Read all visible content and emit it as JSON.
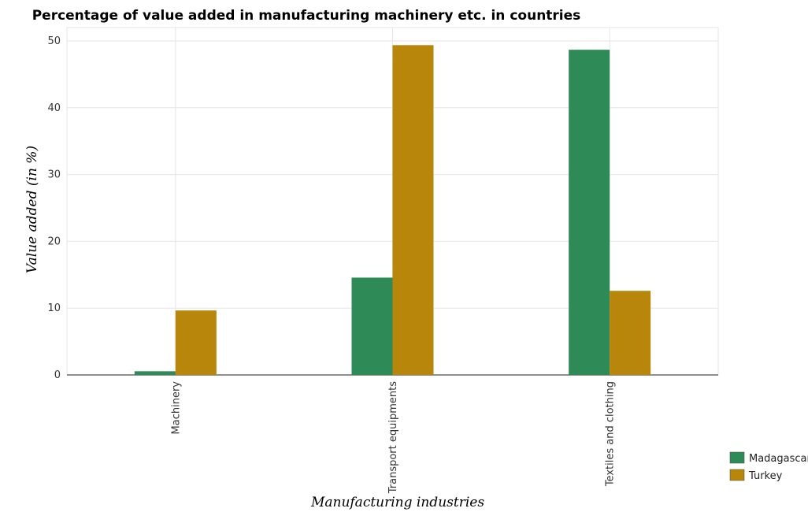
{
  "chart_data": {
    "type": "bar",
    "title": "Percentage of value added in manufacturing machinery etc. in countries",
    "xlabel": "Manufacturing industries",
    "ylabel": "Value added (in %)",
    "categories": [
      "Machinery",
      "Transport equipments",
      "Textiles and clothing"
    ],
    "series": [
      {
        "name": "Madagascar",
        "color": "#2e8b57",
        "values": [
          0.55,
          14.57,
          48.68
        ]
      },
      {
        "name": "Turkey",
        "color": "#b8860b",
        "values": [
          9.65,
          49.37,
          12.59
        ]
      }
    ],
    "ylim": [
      0,
      52
    ],
    "yticks": [
      0,
      10,
      20,
      30,
      40,
      50
    ],
    "grid": true,
    "legend_position": "bottom-right"
  }
}
